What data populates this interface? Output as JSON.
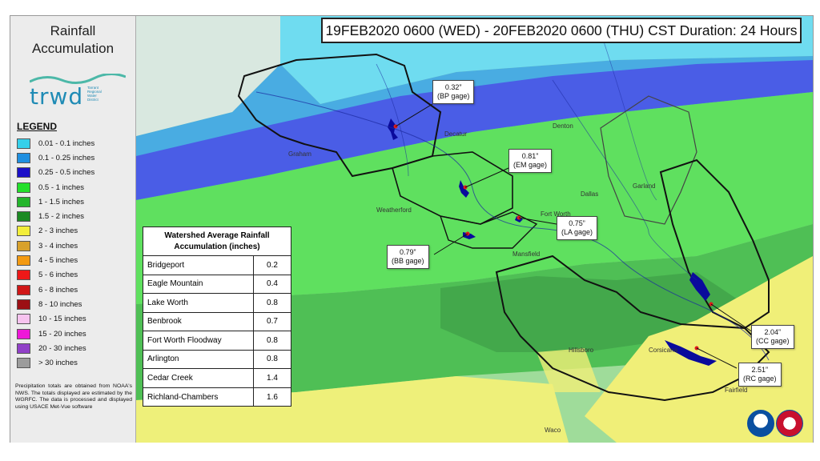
{
  "sidebar": {
    "title": "Rainfall\nAccumulation",
    "logo_text": "trwd",
    "logo_subtext": "Tarrant\nRegional\nWater\nDistrict",
    "legend_title": "LEGEND",
    "legend": [
      {
        "label": "0.01 - 0.1 inches",
        "color": "#35d0ea"
      },
      {
        "label": "0.1 - 0.25 inches",
        "color": "#1e8fe0"
      },
      {
        "label": "0.25 - 0.5 inches",
        "color": "#1b10c8"
      },
      {
        "label": "0.5 - 1 inches",
        "color": "#23e02b"
      },
      {
        "label": "1 - 1.5 inches",
        "color": "#23b52b"
      },
      {
        "label": "1.5 - 2 inches",
        "color": "#1c8a23"
      },
      {
        "label": "2 - 3 inches",
        "color": "#f3ee3a"
      },
      {
        "label": "3 - 4 inches",
        "color": "#d8a12b"
      },
      {
        "label": "4 - 5 inches",
        "color": "#f39a12"
      },
      {
        "label": "5 - 6 inches",
        "color": "#ee1818"
      },
      {
        "label": "6 - 8 inches",
        "color": "#d01717"
      },
      {
        "label": "8 - 10 inches",
        "color": "#9c0f14"
      },
      {
        "label": "10 - 15 inches",
        "color": "#f7c3ef"
      },
      {
        "label": "15 - 20 inches",
        "color": "#ee17d8"
      },
      {
        "label": "20 - 30 inches",
        "color": "#9140c8"
      },
      {
        "label": "> 30 inches",
        "color": "#9c9c9c"
      }
    ],
    "note": "Precipitation totals are obtained from NOAA's NWS. The totals displayed are estimated by the WGRFC. The data is processed and displayed using USACE Met-Vue software"
  },
  "header": {
    "title": "19FEB2020 0600 (WED) - 20FEB2020 0600 (THU) CST Duration: 24 Hours"
  },
  "table": {
    "title": "Watershed Average Rainfall\nAccumulation (inches)",
    "rows": [
      {
        "name": "Bridgeport",
        "value": "0.2"
      },
      {
        "name": "Eagle Mountain",
        "value": "0.4"
      },
      {
        "name": "Lake Worth",
        "value": "0.8"
      },
      {
        "name": "Benbrook",
        "value": "0.7"
      },
      {
        "name": "Fort Worth Floodway",
        "value": "0.8"
      },
      {
        "name": "Arlington",
        "value": "0.8"
      },
      {
        "name": "Cedar Creek",
        "value": "1.4"
      },
      {
        "name": "Richland-Chambers",
        "value": "1.6"
      }
    ]
  },
  "gages": {
    "bp": "0.32”\n(BP gage)",
    "em": "0.81”\n(EM gage)",
    "la": "0.75”\n(LA gage)",
    "bb": "0.79”\n(BB gage)",
    "cc": "2.04”\n(CC gage)",
    "rc": "2.51”\n(RC gage)"
  },
  "map_labels": {
    "cities": [
      "Denton",
      "Dallas",
      "Garland",
      "Fort Worth",
      "Decatur",
      "Graham",
      "Waco",
      "Fairfield",
      "Corsicana",
      "Hillsboro",
      "Mansfield",
      "Weatherford"
    ]
  }
}
